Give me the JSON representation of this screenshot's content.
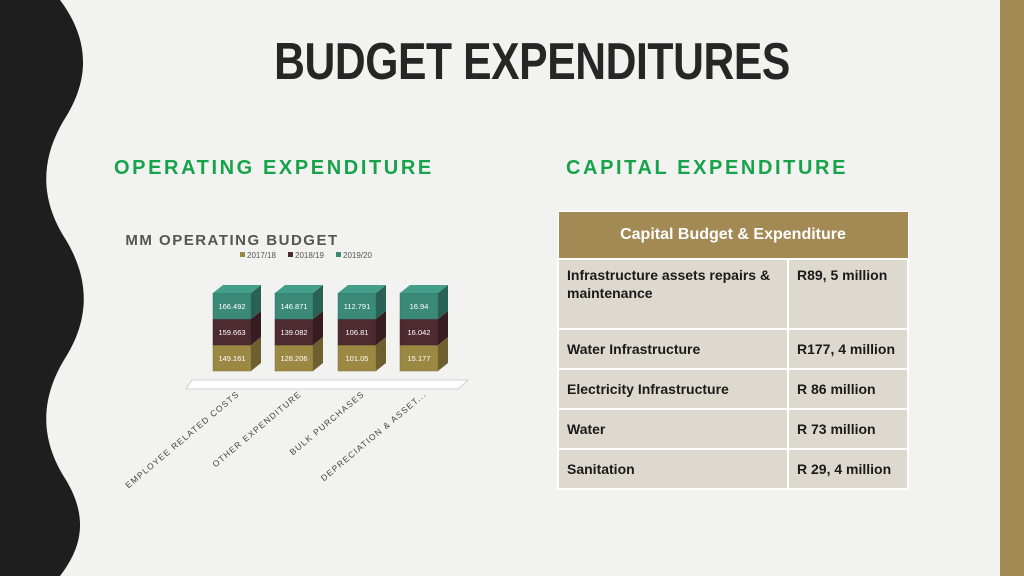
{
  "title": "BUDGET EXPENDITURES",
  "sections": {
    "operating": "OPERATING EXPENDITURE",
    "capital": "CAPITAL EXPENDITURE"
  },
  "colors": {
    "accent_green": "#17a34a",
    "gold": "#a38a54",
    "dark": "#262626"
  },
  "chart_data": {
    "type": "bar",
    "stacked": true,
    "title": "MM OPERATING BUDGET",
    "categories": [
      "EMPLOYEE RELATED COSTS",
      "OTHER EXPENDITURE",
      "BULK PURCHASES",
      "DEPRECIATION & ASSET..."
    ],
    "series": [
      {
        "name": "2017/18",
        "color": "#9b8843",
        "values": [
          149.161,
          128.206,
          101.05,
          15.177
        ],
        "labels": [
          "149.161",
          "128.206",
          "101.05",
          "15.177"
        ]
      },
      {
        "name": "2018/19",
        "color": "#4e2a31",
        "values": [
          159.663,
          139.082,
          106.81,
          16.042
        ],
        "labels": [
          "159.663",
          "139.082",
          "106.81",
          "16.042"
        ]
      },
      {
        "name": "2019/20",
        "color": "#3b8a78",
        "values": [
          166.492,
          146.871,
          112.791,
          16.94
        ],
        "labels": [
          "166.492",
          "146.871",
          "112.791",
          "16.94"
        ]
      }
    ],
    "legend": "top"
  },
  "capital_table": {
    "header": "Capital Budget & Expenditure",
    "rows": [
      {
        "item": "Infrastructure assets repairs & maintenance",
        "amount": "R89, 5 million"
      },
      {
        "item": "Water Infrastructure",
        "amount": "R177, 4 million"
      },
      {
        "item": "Electricity Infrastructure",
        "amount": "R 86 million"
      },
      {
        "item": "Water",
        "amount": "R 73 million"
      },
      {
        "item": "Sanitation",
        "amount": "R 29, 4 million"
      }
    ]
  }
}
